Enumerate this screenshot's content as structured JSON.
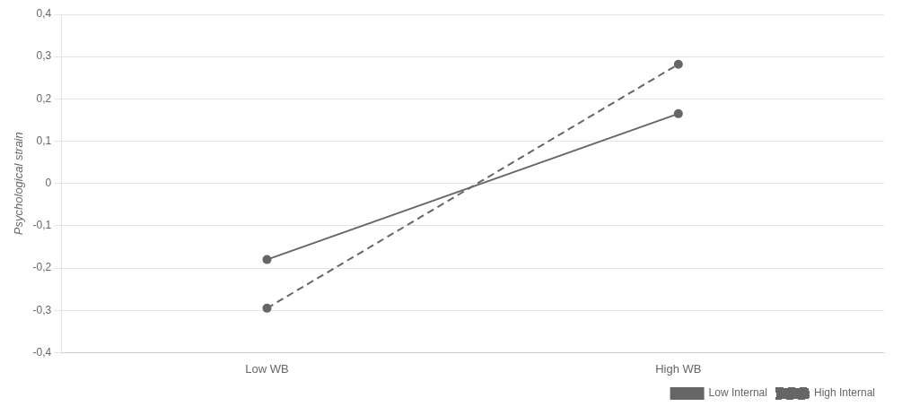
{
  "chart_data": {
    "type": "line",
    "categories": [
      "Low WB",
      "High WB"
    ],
    "series": [
      {
        "name": "Low Internal",
        "color": "#666666",
        "values": [
          -0.18,
          0.165
        ],
        "line_style": "solid",
        "marker": "circle"
      },
      {
        "name": "High Internal",
        "color": "#666666",
        "values": [
          -0.295,
          0.282
        ],
        "line_style": "dashed",
        "marker": "circle"
      }
    ],
    "ylabel": "Psychological strain",
    "ylim": [
      -0.4,
      0.4
    ],
    "yticks": [
      {
        "value": -0.4,
        "label": "-0,4"
      },
      {
        "value": -0.3,
        "label": "-0,3"
      },
      {
        "value": -0.2,
        "label": "-0,2"
      },
      {
        "value": -0.1,
        "label": "-0,1"
      },
      0,
      {
        "value": 0.1,
        "label": "0,1"
      },
      {
        "value": 0.2,
        "label": "0,2"
      },
      {
        "value": 0.3,
        "label": "0,3"
      },
      {
        "value": 0.4,
        "label": "0,4"
      }
    ],
    "grid": "y",
    "legend": "lower right"
  }
}
